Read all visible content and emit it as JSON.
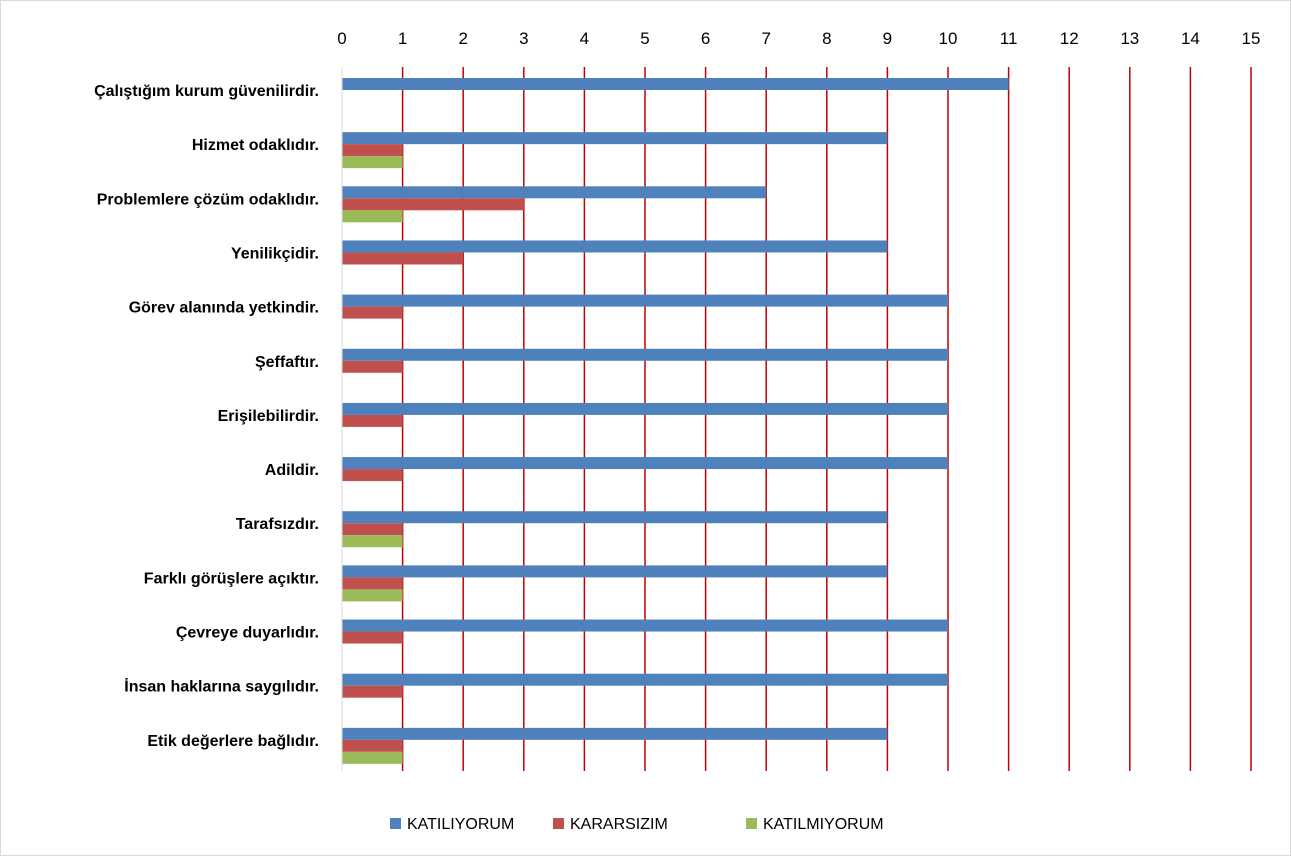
{
  "chart_data": {
    "type": "bar",
    "orientation": "horizontal",
    "title": "",
    "xlabel": "",
    "ylabel": "",
    "xlim": [
      0,
      15
    ],
    "x_ticks": [
      "0",
      "1",
      "2",
      "3",
      "4",
      "5",
      "6",
      "7",
      "8",
      "9",
      "10",
      "11",
      "12",
      "13",
      "14",
      "15"
    ],
    "x_axis_position": "top",
    "grid": true,
    "grid_color": "#c00000",
    "legend_position": "bottom",
    "categories": [
      "Çalıştığım kurum güvenilirdir.",
      "Hizmet odaklıdır.",
      "Problemlere çözüm odaklıdır.",
      "Yenilikçidir.",
      "Görev alanında yetkindir.",
      "Şeffaftır.",
      "Erişilebilirdir.",
      "Adildir.",
      "Tarafsızdır.",
      "Farklı görüşlere açıktır.",
      "Çevreye duyarlıdır.",
      "İnsan haklarına saygılıdır.",
      "Etik değerlere bağlıdır."
    ],
    "series": [
      {
        "name": "KATILIYORUM",
        "color": "#4f81bd",
        "values": [
          11,
          9,
          7,
          9,
          10,
          10,
          10,
          10,
          9,
          9,
          10,
          10,
          9
        ]
      },
      {
        "name": "KARARSIZIM",
        "color": "#c0504d",
        "values": [
          0,
          1,
          3,
          2,
          1,
          1,
          1,
          1,
          1,
          1,
          1,
          1,
          1
        ]
      },
      {
        "name": "KATILMIYORUM",
        "color": "#9bbb59",
        "values": [
          0,
          1,
          1,
          0,
          0,
          0,
          0,
          0,
          1,
          1,
          0,
          0,
          1
        ]
      }
    ]
  }
}
